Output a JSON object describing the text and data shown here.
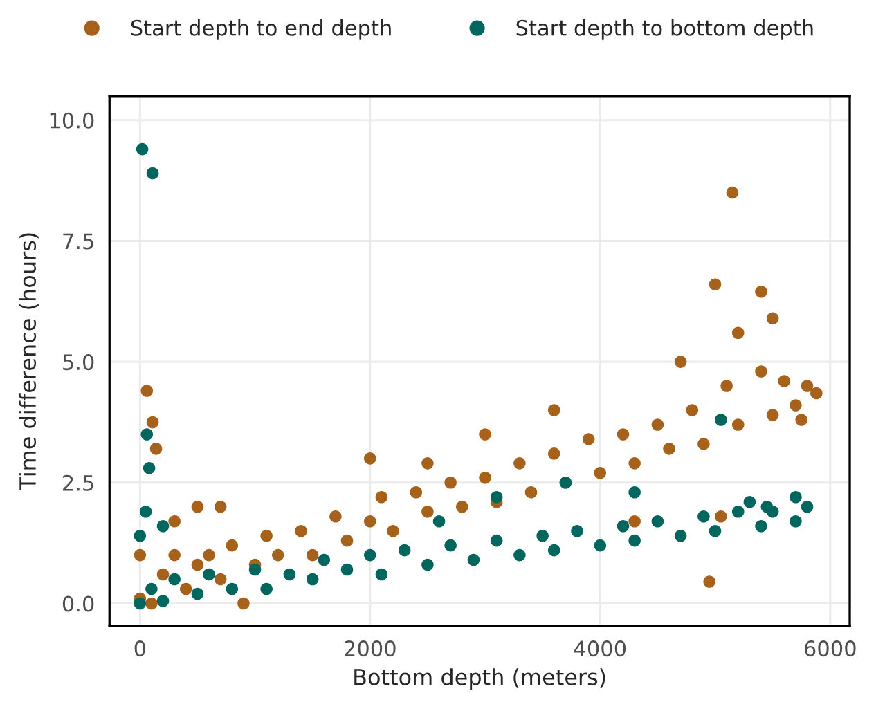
{
  "chart_data": {
    "type": "scatter",
    "xlabel": "Bottom depth (meters)",
    "ylabel": "Time difference (hours)",
    "xlim": [
      -265,
      6170
    ],
    "ylim": [
      -0.46,
      10.5
    ],
    "xticks": [
      0,
      2000,
      4000,
      6000
    ],
    "yticks": [
      {
        "value": 0,
        "label": "0.0"
      },
      {
        "value": 2.5,
        "label": "2.5"
      },
      {
        "value": 5,
        "label": "5.0"
      },
      {
        "value": 7.5,
        "label": "7.5"
      },
      {
        "value": 10,
        "label": "10.0"
      }
    ],
    "grid": true,
    "legend": "top",
    "marker": "circle",
    "series": [
      {
        "name": "Start depth to end depth",
        "color": "#a6611a",
        "x": [
          5150,
          5000,
          5400,
          4950,
          60,
          110,
          140,
          2000,
          2500,
          3000,
          3600,
          4700,
          5200,
          5500,
          5050,
          4300,
          500,
          700,
          300,
          5880,
          0,
          0,
          100,
          200,
          300,
          400,
          500,
          600,
          700,
          800,
          900,
          1000,
          1100,
          1200,
          1400,
          1500,
          1700,
          1800,
          2000,
          2100,
          2200,
          2400,
          2500,
          2700,
          2800,
          3000,
          3100,
          3300,
          3400,
          3600,
          3700,
          3900,
          4000,
          4200,
          4300,
          4500,
          4600,
          4800,
          4900,
          5100,
          5200,
          5400,
          5500,
          5600,
          5700,
          5800,
          5750
        ],
        "values": [
          8.5,
          6.6,
          6.45,
          0.45,
          4.4,
          3.75,
          3.2,
          3.0,
          2.9,
          3.5,
          4.0,
          5.0,
          5.6,
          5.9,
          1.8,
          1.7,
          2.0,
          2.0,
          1.7,
          4.35,
          0.1,
          1.0,
          0.0,
          0.6,
          1.0,
          0.3,
          0.8,
          1.0,
          0.5,
          1.2,
          0.0,
          0.8,
          1.4,
          1.0,
          1.5,
          1.0,
          1.8,
          1.3,
          1.7,
          2.2,
          1.5,
          2.3,
          1.9,
          2.5,
          2.0,
          2.6,
          2.1,
          2.9,
          2.3,
          3.1,
          2.5,
          3.4,
          2.7,
          3.5,
          2.9,
          3.7,
          3.2,
          4.0,
          3.3,
          4.5,
          3.7,
          4.8,
          3.9,
          4.6,
          4.1,
          4.5,
          3.8
        ]
      },
      {
        "name": "Start depth to bottom depth",
        "color": "#01665e",
        "x": [
          20,
          110,
          60,
          80,
          0,
          50,
          200,
          2600,
          3100,
          3700,
          4300,
          5050,
          5450,
          5300,
          5700,
          0,
          100,
          200,
          300,
          500,
          600,
          800,
          1000,
          1100,
          1300,
          1500,
          1600,
          1800,
          2000,
          2100,
          2300,
          2500,
          2700,
          2900,
          3100,
          3300,
          3500,
          3600,
          3800,
          4000,
          4200,
          4300,
          4500,
          4700,
          4900,
          5000,
          5200,
          5400,
          5500,
          5700,
          5800
        ],
        "values": [
          9.4,
          8.9,
          3.5,
          2.8,
          1.4,
          1.9,
          1.6,
          1.7,
          2.2,
          2.5,
          2.3,
          3.8,
          2.0,
          2.1,
          2.2,
          0.0,
          0.3,
          0.05,
          0.5,
          0.2,
          0.6,
          0.3,
          0.7,
          0.3,
          0.6,
          0.5,
          0.9,
          0.7,
          1.0,
          0.6,
          1.1,
          0.8,
          1.2,
          0.9,
          1.3,
          1.0,
          1.4,
          1.1,
          1.5,
          1.2,
          1.6,
          1.3,
          1.7,
          1.4,
          1.8,
          1.5,
          1.9,
          1.6,
          1.9,
          1.7,
          2.0
        ]
      }
    ]
  }
}
